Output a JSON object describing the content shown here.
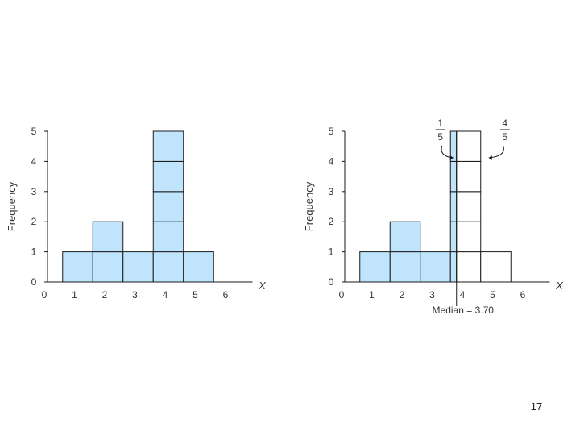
{
  "slide": {
    "page_number": "17",
    "colors": {
      "bar_fill": "#c0e4fb",
      "stroke": "#1a1a1a",
      "text": "#333333",
      "white_fill": "#ffffff"
    }
  },
  "chart_data": [
    {
      "type": "bar",
      "title": "",
      "xlabel": "X",
      "ylabel": "Frequency",
      "x_ticks": [
        "0",
        "1",
        "2",
        "3",
        "4",
        "5",
        "6"
      ],
      "y_ticks": [
        "0",
        "1",
        "2",
        "3",
        "4",
        "5"
      ],
      "xlim": [
        0,
        7
      ],
      "ylim": [
        0,
        5
      ],
      "categories": [
        "1",
        "2",
        "3",
        "4",
        "5"
      ],
      "values": [
        1,
        2,
        1,
        5,
        1
      ],
      "grid": false
    },
    {
      "type": "bar",
      "title": "",
      "xlabel": "X",
      "ylabel": "Frequency",
      "x_ticks": [
        "0",
        "1",
        "2",
        "3",
        "4",
        "5",
        "6"
      ],
      "y_ticks": [
        "0",
        "1",
        "2",
        "3",
        "4",
        "5"
      ],
      "xlim": [
        0,
        7
      ],
      "ylim": [
        0,
        5
      ],
      "categories": [
        "1",
        "2",
        "3",
        "4",
        "5"
      ],
      "values": [
        1,
        2,
        1,
        5,
        1
      ],
      "grid": false,
      "median": {
        "value": 3.7,
        "label": "Median = 3.70"
      },
      "fractions": [
        {
          "numerator": "1",
          "denominator": "5",
          "side": "left"
        },
        {
          "numerator": "4",
          "denominator": "5",
          "side": "right"
        }
      ]
    }
  ]
}
